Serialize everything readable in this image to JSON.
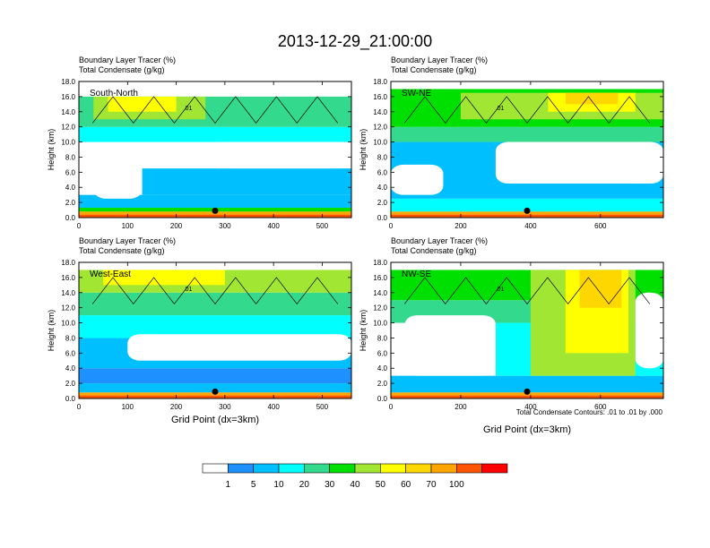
{
  "title": "2013-12-29_21:00:00",
  "colorbar": {
    "labels": [
      "1",
      "5",
      "10",
      "20",
      "30",
      "40",
      "50",
      "60",
      "70",
      "100"
    ],
    "colors": [
      "#ffffff",
      "#1e90ff",
      "#00bfff",
      "#00ffff",
      "#33d98c",
      "#00e000",
      "#a0e632",
      "#ffff00",
      "#ffd700",
      "#ffa500",
      "#ff5500",
      "#ff0000"
    ]
  },
  "footnote": "Total Condensate Contours: .01 to .01 by .000",
  "xaxis_label": "Grid Point (dx=3km)",
  "ylabel": "Height (km)",
  "line1": "Boundary Layer Tracer    (%)",
  "line2": "Total Condensate    (g/kg)",
  "contour_label": ".01",
  "chart_data": [
    {
      "type": "heatmap",
      "panel": "South-North",
      "title": "Boundary Layer Tracer (%) / Total Condensate (g/kg)",
      "xlabel": "",
      "ylabel": "Height (km)",
      "xlim": [
        0,
        560
      ],
      "ylim": [
        0,
        18
      ],
      "xticks": [
        0,
        100,
        200,
        300,
        400,
        500
      ],
      "yticks": [
        0.0,
        2.0,
        4.0,
        6.0,
        8.0,
        10.0,
        12.0,
        14.0,
        16.0,
        18.0
      ],
      "marker_x": 280,
      "bands": [
        {
          "x0": 0,
          "x1": 560,
          "y0": 0,
          "y1": 0.4,
          "value": 100
        },
        {
          "x0": 0,
          "x1": 560,
          "y0": 0.4,
          "y1": 0.8,
          "value": 70
        },
        {
          "x0": 0,
          "x1": 560,
          "y0": 0.8,
          "y1": 1.3,
          "value": 30
        },
        {
          "x0": 0,
          "x1": 560,
          "y0": 1.3,
          "y1": 3.0,
          "value": 5
        },
        {
          "x0": 130,
          "x1": 560,
          "y0": 3.0,
          "y1": 6.5,
          "value": 5
        },
        {
          "x0": 0,
          "x1": 560,
          "y0": 10.0,
          "y1": 12.0,
          "value": 10
        },
        {
          "x0": 0,
          "x1": 560,
          "y0": 12.0,
          "y1": 16.0,
          "value": 20
        },
        {
          "x0": 30,
          "x1": 260,
          "y0": 13.0,
          "y1": 16.0,
          "value": 40
        },
        {
          "x0": 60,
          "x1": 200,
          "y0": 14.0,
          "y1": 16.0,
          "value": 50
        }
      ],
      "holes": [
        {
          "x0": 260,
          "x1": 560,
          "y0": 6.5,
          "y1": 10.0
        },
        {
          "x0": 30,
          "x1": 130,
          "y0": 2.5,
          "y1": 8.0
        }
      ]
    },
    {
      "type": "heatmap",
      "panel": "SW-NE",
      "title": "Boundary Layer Tracer (%) / Total Condensate (g/kg)",
      "xlabel": "",
      "ylabel": "Height (km)",
      "xlim": [
        0,
        780
      ],
      "ylim": [
        0,
        18
      ],
      "xticks": [
        0,
        200,
        400,
        600
      ],
      "yticks": [
        0.0,
        2.0,
        4.0,
        6.0,
        8.0,
        10.0,
        12.0,
        14.0,
        16.0,
        18.0
      ],
      "marker_x": 390,
      "bands": [
        {
          "x0": 0,
          "x1": 780,
          "y0": 0,
          "y1": 0.4,
          "value": 100
        },
        {
          "x0": 0,
          "x1": 780,
          "y0": 0.4,
          "y1": 0.8,
          "value": 70
        },
        {
          "x0": 0,
          "x1": 780,
          "y0": 0.8,
          "y1": 2.5,
          "value": 10
        },
        {
          "x0": 0,
          "x1": 780,
          "y0": 2.5,
          "y1": 10.0,
          "value": 5
        },
        {
          "x0": 0,
          "x1": 780,
          "y0": 10.0,
          "y1": 12.0,
          "value": 20
        },
        {
          "x0": 0,
          "x1": 780,
          "y0": 12.0,
          "y1": 17.0,
          "value": 30
        },
        {
          "x0": 200,
          "x1": 780,
          "y0": 13.0,
          "y1": 16.5,
          "value": 40
        },
        {
          "x0": 450,
          "x1": 700,
          "y0": 14.0,
          "y1": 16.5,
          "value": 50
        },
        {
          "x0": 500,
          "x1": 650,
          "y0": 15.0,
          "y1": 16.5,
          "value": 60
        }
      ],
      "holes": [
        {
          "x0": 300,
          "x1": 780,
          "y0": 4.5,
          "y1": 10.0
        },
        {
          "x0": 0,
          "x1": 150,
          "y0": 3.0,
          "y1": 7.0
        }
      ]
    },
    {
      "type": "heatmap",
      "panel": "West-East",
      "title": "Boundary Layer Tracer (%) / Total Condensate (g/kg)",
      "xlabel": "Grid Point (dx=3km)",
      "ylabel": "Height (km)",
      "xlim": [
        0,
        560
      ],
      "ylim": [
        0,
        18
      ],
      "xticks": [
        0,
        100,
        200,
        300,
        400,
        500
      ],
      "yticks": [
        0.0,
        2.0,
        4.0,
        6.0,
        8.0,
        10.0,
        12.0,
        14.0,
        16.0,
        18.0
      ],
      "marker_x": 280,
      "bands": [
        {
          "x0": 0,
          "x1": 560,
          "y0": 0,
          "y1": 0.4,
          "value": 100
        },
        {
          "x0": 0,
          "x1": 560,
          "y0": 0.4,
          "y1": 0.8,
          "value": 70
        },
        {
          "x0": 0,
          "x1": 560,
          "y0": 0.8,
          "y1": 2.0,
          "value": 5
        },
        {
          "x0": 0,
          "x1": 560,
          "y0": 2.0,
          "y1": 4.0,
          "value": 1
        },
        {
          "x0": 0,
          "x1": 560,
          "y0": 4.0,
          "y1": 8.0,
          "value": 5
        },
        {
          "x0": 0,
          "x1": 560,
          "y0": 8.0,
          "y1": 11.0,
          "value": 10
        },
        {
          "x0": 0,
          "x1": 560,
          "y0": 11.0,
          "y1": 14.0,
          "value": 20
        },
        {
          "x0": 0,
          "x1": 560,
          "y0": 14.0,
          "y1": 17.0,
          "value": 40
        },
        {
          "x0": 50,
          "x1": 300,
          "y0": 15.0,
          "y1": 17.0,
          "value": 50
        }
      ],
      "holes": [
        {
          "x0": 100,
          "x1": 560,
          "y0": 5.0,
          "y1": 8.5
        }
      ]
    },
    {
      "type": "heatmap",
      "panel": "NW-SE",
      "title": "Boundary Layer Tracer (%) / Total Condensate (g/kg)",
      "xlabel": "Grid Point (dx=3km)",
      "ylabel": "Height (km)",
      "xlim": [
        0,
        780
      ],
      "ylim": [
        0,
        18
      ],
      "xticks": [
        0,
        200,
        400,
        600
      ],
      "yticks": [
        0.0,
        2.0,
        4.0,
        6.0,
        8.0,
        10.0,
        12.0,
        14.0,
        16.0,
        18.0
      ],
      "marker_x": 390,
      "bands": [
        {
          "x0": 0,
          "x1": 780,
          "y0": 0,
          "y1": 0.4,
          "value": 100
        },
        {
          "x0": 0,
          "x1": 780,
          "y0": 0.4,
          "y1": 0.8,
          "value": 70
        },
        {
          "x0": 0,
          "x1": 780,
          "y0": 0.8,
          "y1": 3.0,
          "value": 5
        },
        {
          "x0": 300,
          "x1": 780,
          "y0": 3.0,
          "y1": 10.0,
          "value": 10
        },
        {
          "x0": 0,
          "x1": 780,
          "y0": 10.0,
          "y1": 13.0,
          "value": 20
        },
        {
          "x0": 0,
          "x1": 780,
          "y0": 13.0,
          "y1": 17.0,
          "value": 30
        },
        {
          "x0": 400,
          "x1": 700,
          "y0": 3.0,
          "y1": 17.0,
          "value": 40
        },
        {
          "x0": 500,
          "x1": 680,
          "y0": 6.0,
          "y1": 17.0,
          "value": 50
        },
        {
          "x0": 540,
          "x1": 660,
          "y0": 12.0,
          "y1": 17.0,
          "value": 60
        }
      ],
      "holes": [
        {
          "x0": 40,
          "x1": 300,
          "y0": 3.0,
          "y1": 11.0
        },
        {
          "x0": 700,
          "x1": 780,
          "y0": 4.0,
          "y1": 14.0
        }
      ]
    }
  ]
}
